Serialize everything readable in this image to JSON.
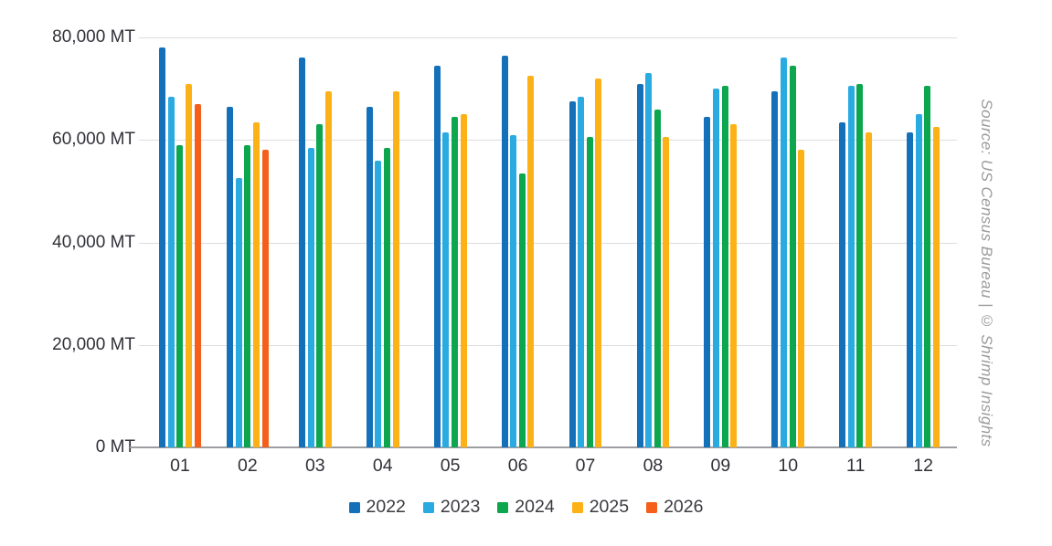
{
  "source_note": "Source: US Census Bureau | © Shrimp Insights",
  "chart_data": {
    "type": "bar",
    "title": "",
    "unit": "MT",
    "categories": [
      "01",
      "02",
      "03",
      "04",
      "05",
      "06",
      "07",
      "08",
      "09",
      "10",
      "11",
      "12"
    ],
    "series": [
      {
        "name": "2022",
        "color": "#1470b8",
        "values": [
          78000,
          66500,
          76000,
          66500,
          74500,
          76500,
          67500,
          71000,
          64500,
          69500,
          63500,
          61500
        ]
      },
      {
        "name": "2023",
        "color": "#29abe2",
        "values": [
          68500,
          52500,
          58500,
          56000,
          61500,
          61000,
          68500,
          73000,
          70000,
          76000,
          70500,
          65000
        ]
      },
      {
        "name": "2024",
        "color": "#0ba64e",
        "values": [
          59000,
          59000,
          63000,
          58500,
          64500,
          53500,
          60500,
          66000,
          70500,
          74500,
          71000,
          70500
        ]
      },
      {
        "name": "2025",
        "color": "#fcb216",
        "values": [
          71000,
          63500,
          69500,
          69500,
          65000,
          72500,
          72000,
          60500,
          63000,
          58000,
          61500,
          62500
        ]
      },
      {
        "name": "2026",
        "color": "#f4601c",
        "values": [
          67000,
          58000,
          null,
          null,
          null,
          null,
          null,
          null,
          null,
          null,
          null,
          null
        ]
      }
    ],
    "ylim": [
      0,
      80000
    ],
    "y_ticks": [
      {
        "value": 80000,
        "label": "80,000 MT"
      },
      {
        "value": 60000,
        "label": "60,000 MT"
      },
      {
        "value": 40000,
        "label": "40,000 MT"
      },
      {
        "value": 20000,
        "label": "20,000 MT"
      },
      {
        "value": 0,
        "label": "0 MT"
      }
    ],
    "grid": true,
    "legend_position": "bottom"
  }
}
